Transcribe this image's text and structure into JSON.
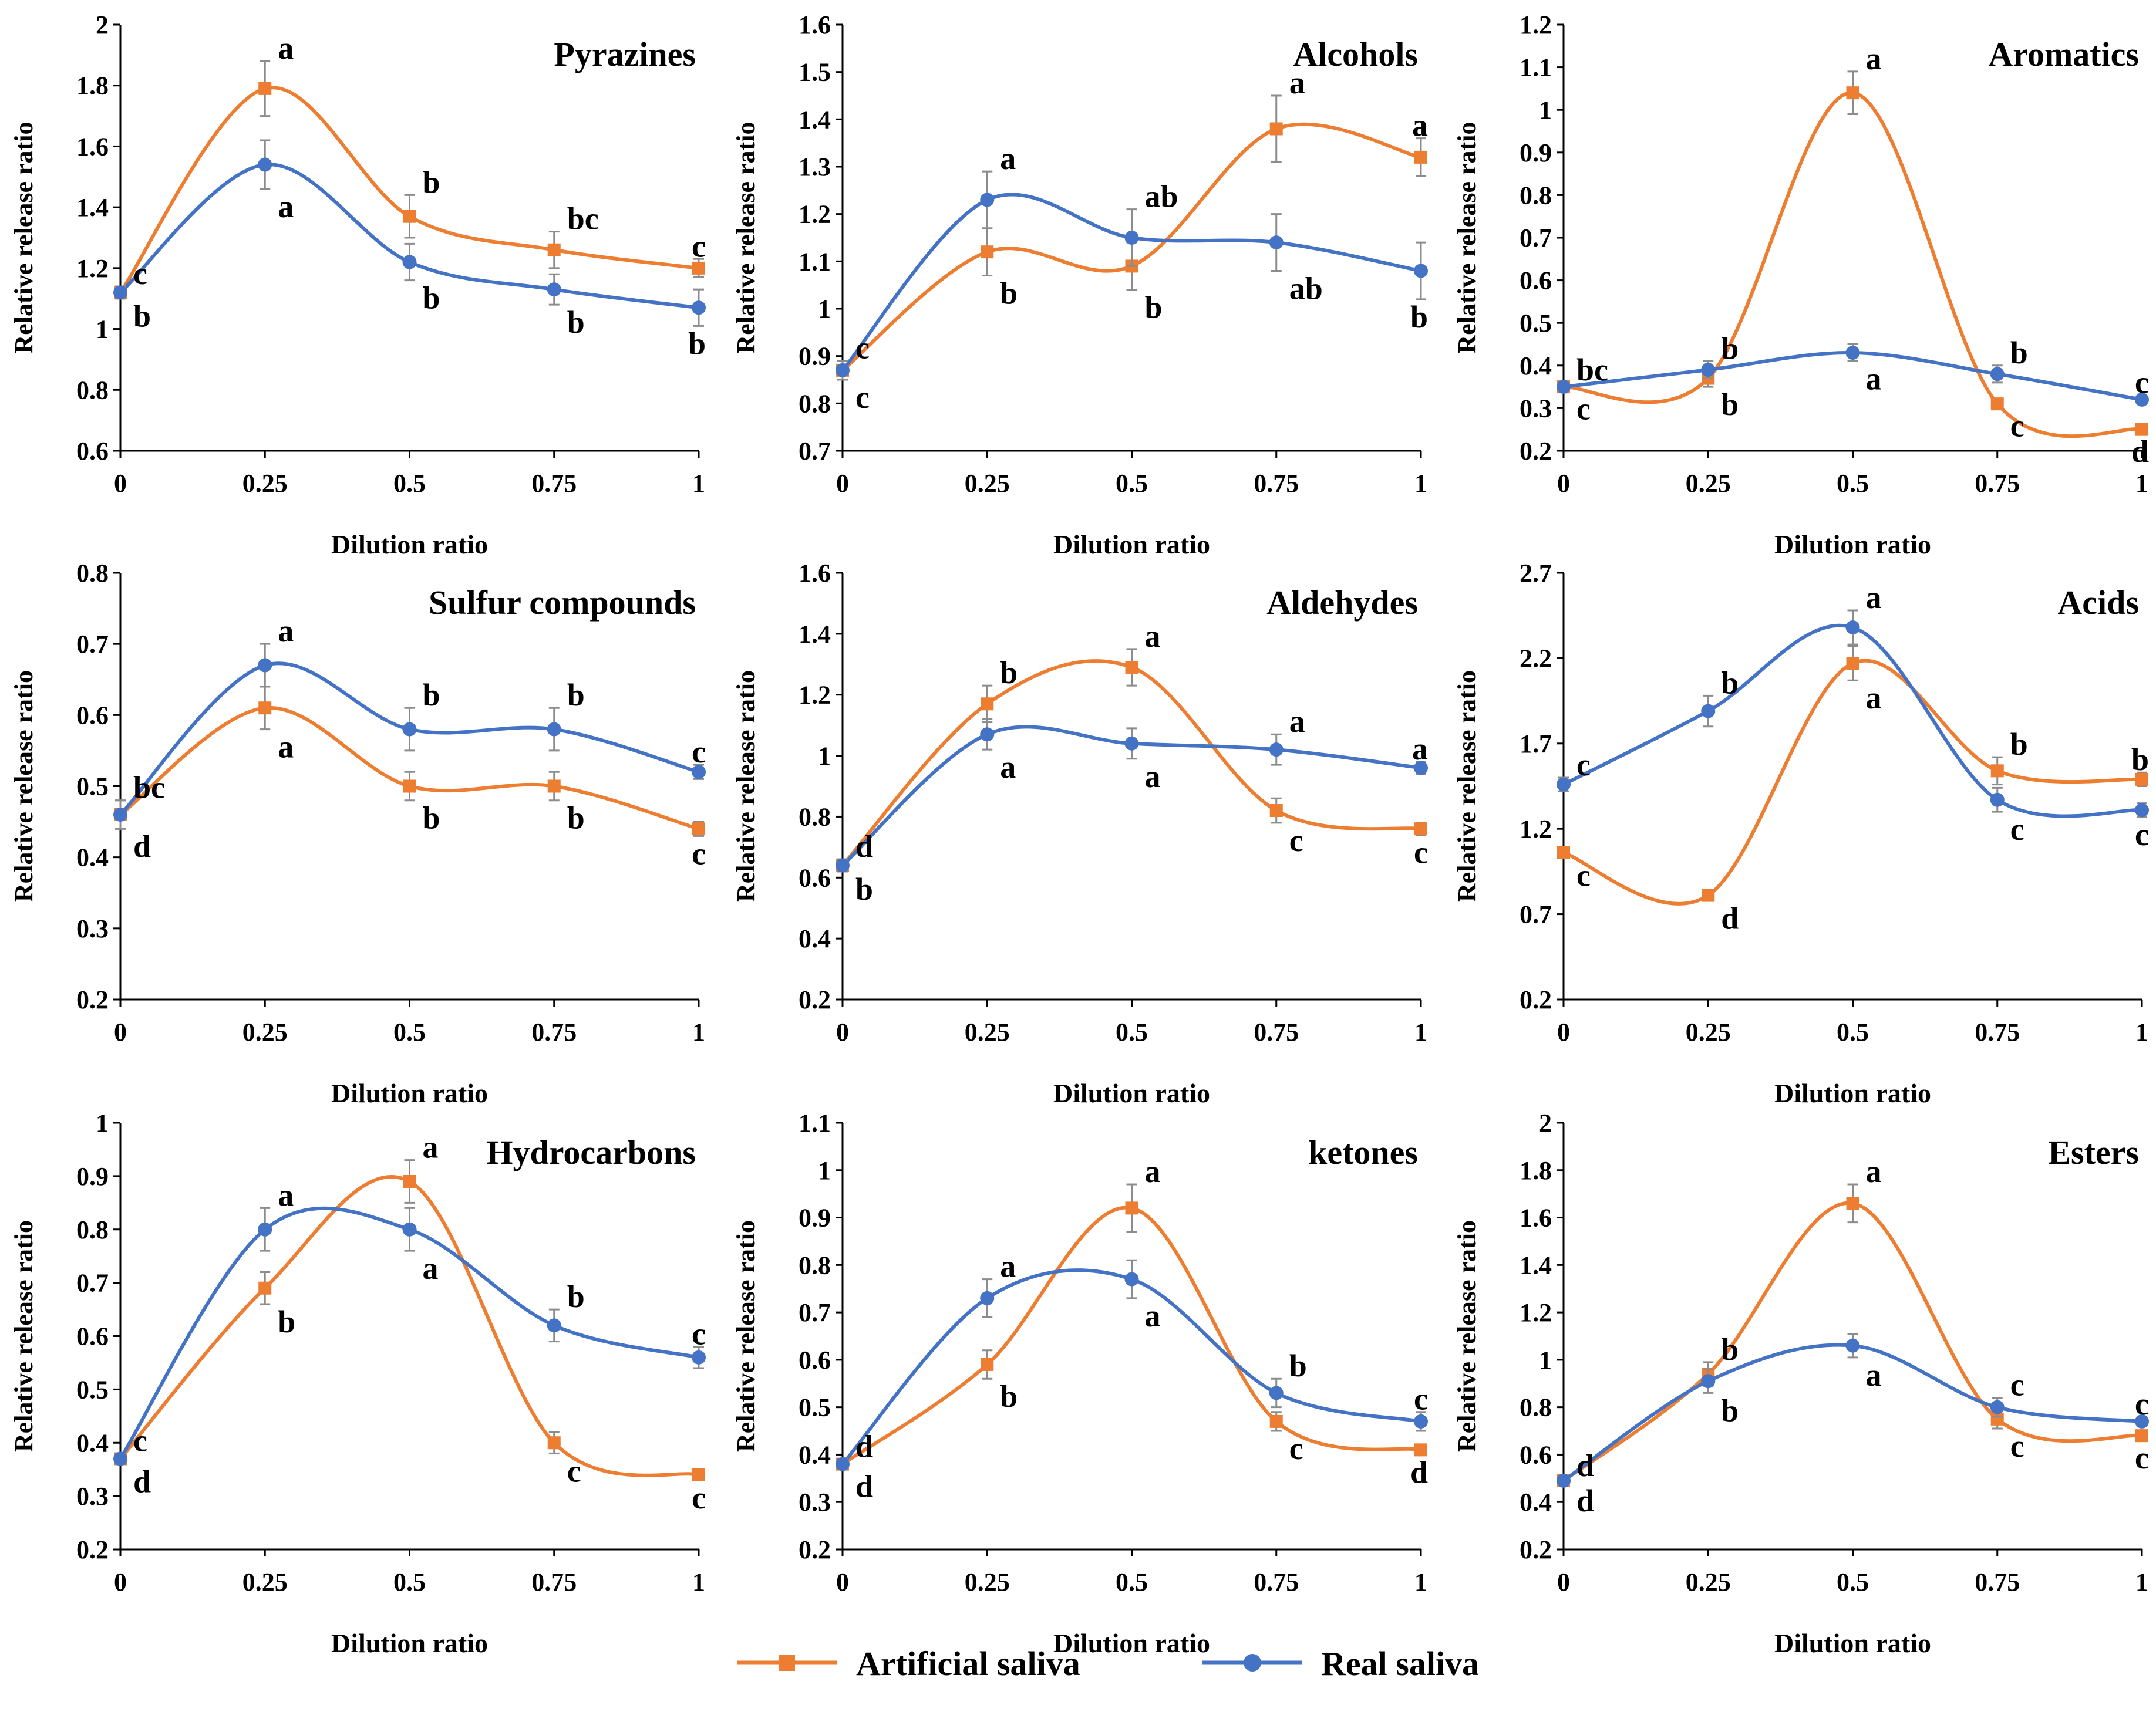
{
  "colors": {
    "artificial": "#ED7D31",
    "real": "#4472C4",
    "error_bar": "#8C8C8C",
    "axis": "#000000"
  },
  "legend": {
    "artificial_label": "Artificial saliva",
    "real_label": "Real saliva"
  },
  "chart_data": [
    {
      "type": "line",
      "title": "Pyrazines",
      "xlabel": "Dilution ratio",
      "ylabel": "Relative release ratio",
      "x": [
        0,
        0.25,
        0.5,
        0.75,
        1
      ],
      "x_ticks": [
        "0",
        "0.25",
        "0.5",
        "0.75",
        "1"
      ],
      "ylim": [
        0.6,
        2.0
      ],
      "y_ticks": [
        "0.6",
        "0.8",
        "1",
        "1.2",
        "1.4",
        "1.6",
        "1.8",
        "2"
      ],
      "series": [
        {
          "name": "Artificial saliva",
          "values": [
            1.12,
            1.79,
            1.37,
            1.26,
            1.2
          ],
          "errors": [
            0.02,
            0.09,
            0.07,
            0.06,
            0.03
          ],
          "letters": [
            "c",
            "a",
            "b",
            "bc",
            "c"
          ]
        },
        {
          "name": "Real saliva",
          "values": [
            1.12,
            1.54,
            1.22,
            1.13,
            1.07
          ],
          "errors": [
            0.02,
            0.08,
            0.06,
            0.05,
            0.06
          ],
          "letters": [
            "b",
            "a",
            "b",
            "b",
            "b"
          ]
        }
      ]
    },
    {
      "type": "line",
      "title": "Alcohols",
      "xlabel": "Dilution ratio",
      "ylabel": "Relative release ratio",
      "x": [
        0,
        0.25,
        0.5,
        0.75,
        1
      ],
      "x_ticks": [
        "0",
        "0.25",
        "0.5",
        "0.75",
        "1"
      ],
      "ylim": [
        0.7,
        1.6
      ],
      "y_ticks": [
        "0.7",
        "0.8",
        "0.9",
        "1",
        "1.1",
        "1.2",
        "1.3",
        "1.4",
        "1.5",
        "1.6"
      ],
      "series": [
        {
          "name": "Artificial saliva",
          "values": [
            0.87,
            1.12,
            1.09,
            1.38,
            1.32
          ],
          "errors": [
            0.02,
            0.05,
            0.05,
            0.07,
            0.04
          ],
          "letters": [
            "c",
            "b",
            "b",
            "a",
            "a"
          ]
        },
        {
          "name": "Real saliva",
          "values": [
            0.87,
            1.23,
            1.15,
            1.14,
            1.08
          ],
          "errors": [
            0.02,
            0.06,
            0.06,
            0.06,
            0.06
          ],
          "letters": [
            "c",
            "a",
            "ab",
            "ab",
            "b"
          ]
        }
      ]
    },
    {
      "type": "line",
      "title": "Aromatics",
      "xlabel": "Dilution ratio",
      "ylabel": "Relative release ratio",
      "x": [
        0,
        0.25,
        0.5,
        0.75,
        1
      ],
      "x_ticks": [
        "0",
        "0.25",
        "0.5",
        "0.75",
        "1"
      ],
      "ylim": [
        0.2,
        1.2
      ],
      "y_ticks": [
        "0.2",
        "0.3",
        "0.4",
        "0.5",
        "0.6",
        "0.7",
        "0.8",
        "0.9",
        "1",
        "1.1",
        "1.2"
      ],
      "series": [
        {
          "name": "Artificial saliva",
          "values": [
            0.35,
            0.37,
            1.04,
            0.31,
            0.25
          ],
          "errors": [
            0.01,
            0.02,
            0.05,
            0.01,
            0.01
          ],
          "letters": [
            "bc",
            "b",
            "a",
            "c",
            "d"
          ]
        },
        {
          "name": "Real saliva",
          "values": [
            0.35,
            0.39,
            0.43,
            0.38,
            0.32
          ],
          "errors": [
            0.01,
            0.02,
            0.02,
            0.02,
            0.01
          ],
          "letters": [
            "c",
            "b",
            "a",
            "b",
            "c"
          ]
        }
      ]
    },
    {
      "type": "line",
      "title": "Sulfur compounds",
      "xlabel": "Dilution ratio",
      "ylabel": "Relative release ratio",
      "x": [
        0,
        0.25,
        0.5,
        0.75,
        1
      ],
      "x_ticks": [
        "0",
        "0.25",
        "0.5",
        "0.75",
        "1"
      ],
      "ylim": [
        0.2,
        0.8
      ],
      "y_ticks": [
        "0.2",
        "0.3",
        "0.4",
        "0.5",
        "0.6",
        "0.7",
        "0.8"
      ],
      "series": [
        {
          "name": "Artificial saliva",
          "values": [
            0.46,
            0.61,
            0.5,
            0.5,
            0.44
          ],
          "errors": [
            0.02,
            0.03,
            0.02,
            0.02,
            0.01
          ],
          "letters": [
            "bc",
            "a",
            "b",
            "b",
            "c"
          ]
        },
        {
          "name": "Real saliva",
          "values": [
            0.46,
            0.67,
            0.58,
            0.58,
            0.52
          ],
          "errors": [
            0.02,
            0.03,
            0.03,
            0.03,
            0.01
          ],
          "letters": [
            "d",
            "a",
            "b",
            "b",
            "c"
          ]
        }
      ]
    },
    {
      "type": "line",
      "title": "Aldehydes",
      "xlabel": "Dilution ratio",
      "ylabel": "Relative release ratio",
      "x": [
        0,
        0.25,
        0.5,
        0.75,
        1
      ],
      "x_ticks": [
        "0",
        "0.25",
        "0.5",
        "0.75",
        "1"
      ],
      "ylim": [
        0.2,
        1.6
      ],
      "y_ticks": [
        "0.2",
        "0.4",
        "0.6",
        "0.8",
        "1",
        "1.2",
        "1.4",
        "1.6"
      ],
      "series": [
        {
          "name": "Artificial saliva",
          "values": [
            0.64,
            1.17,
            1.29,
            0.82,
            0.76
          ],
          "errors": [
            0.02,
            0.06,
            0.06,
            0.04,
            0.02
          ],
          "letters": [
            "d",
            "b",
            "a",
            "c",
            "c"
          ]
        },
        {
          "name": "Real saliva",
          "values": [
            0.64,
            1.07,
            1.04,
            1.02,
            0.96
          ],
          "errors": [
            0.02,
            0.05,
            0.05,
            0.05,
            0.02
          ],
          "letters": [
            "b",
            "a",
            "a",
            "a",
            "a"
          ]
        }
      ]
    },
    {
      "type": "line",
      "title": "Acids",
      "xlabel": "Dilution ratio",
      "ylabel": "Relative release ratio",
      "x": [
        0,
        0.25,
        0.5,
        0.75,
        1
      ],
      "x_ticks": [
        "0",
        "0.25",
        "0.5",
        "0.75",
        "1"
      ],
      "ylim": [
        0.2,
        2.7
      ],
      "y_ticks": [
        "0.2",
        "0.7",
        "1.2",
        "1.7",
        "2.2",
        "2.7"
      ],
      "series": [
        {
          "name": "Artificial saliva",
          "values": [
            1.06,
            0.81,
            2.17,
            1.54,
            1.49
          ],
          "errors": [
            0.03,
            0.03,
            0.1,
            0.08,
            0.04
          ],
          "letters": [
            "c",
            "d",
            "a",
            "b",
            "b"
          ]
        },
        {
          "name": "Real saliva",
          "values": [
            1.46,
            1.89,
            2.38,
            1.37,
            1.31
          ],
          "errors": [
            0.04,
            0.09,
            0.1,
            0.07,
            0.04
          ],
          "letters": [
            "c",
            "b",
            "a",
            "c",
            "c"
          ]
        }
      ]
    },
    {
      "type": "line",
      "title": "Hydrocarbons",
      "xlabel": "Dilution ratio",
      "ylabel": "Relative release ratio",
      "x": [
        0,
        0.25,
        0.5,
        0.75,
        1
      ],
      "x_ticks": [
        "0",
        "0.25",
        "0.5",
        "0.75",
        "1"
      ],
      "ylim": [
        0.2,
        1.0
      ],
      "y_ticks": [
        "0.2",
        "0.3",
        "0.4",
        "0.5",
        "0.6",
        "0.7",
        "0.8",
        "0.9",
        "1"
      ],
      "series": [
        {
          "name": "Artificial saliva",
          "values": [
            0.37,
            0.69,
            0.89,
            0.4,
            0.34
          ],
          "errors": [
            0.01,
            0.03,
            0.04,
            0.02,
            0.01
          ],
          "letters": [
            "c",
            "b",
            "a",
            "c",
            "c"
          ]
        },
        {
          "name": "Real saliva",
          "values": [
            0.37,
            0.8,
            0.8,
            0.62,
            0.56
          ],
          "errors": [
            0.01,
            0.04,
            0.04,
            0.03,
            0.02
          ],
          "letters": [
            "d",
            "a",
            "a",
            "b",
            "c"
          ]
        }
      ]
    },
    {
      "type": "line",
      "title": "ketones",
      "xlabel": "Dilution ratio",
      "ylabel": "Relative release ratio",
      "x": [
        0,
        0.25,
        0.5,
        0.75,
        1
      ],
      "x_ticks": [
        "0",
        "0.25",
        "0.5",
        "0.75",
        "1"
      ],
      "ylim": [
        0.2,
        1.1
      ],
      "y_ticks": [
        "0.2",
        "0.3",
        "0.4",
        "0.5",
        "0.6",
        "0.7",
        "0.8",
        "0.9",
        "1",
        "1.1"
      ],
      "series": [
        {
          "name": "Artificial saliva",
          "values": [
            0.38,
            0.59,
            0.92,
            0.47,
            0.41
          ],
          "errors": [
            0.01,
            0.03,
            0.05,
            0.02,
            0.01
          ],
          "letters": [
            "d",
            "b",
            "a",
            "c",
            "d"
          ]
        },
        {
          "name": "Real saliva",
          "values": [
            0.38,
            0.73,
            0.77,
            0.53,
            0.47
          ],
          "errors": [
            0.01,
            0.04,
            0.04,
            0.03,
            0.02
          ],
          "letters": [
            "d",
            "a",
            "a",
            "b",
            "c"
          ]
        }
      ]
    },
    {
      "type": "line",
      "title": "Esters",
      "xlabel": "Dilution ratio",
      "ylabel": "Relative release ratio",
      "x": [
        0,
        0.25,
        0.5,
        0.75,
        1
      ],
      "x_ticks": [
        "0",
        "0.25",
        "0.5",
        "0.75",
        "1"
      ],
      "ylim": [
        0.2,
        2.0
      ],
      "y_ticks": [
        "0.2",
        "0.4",
        "0.6",
        "0.8",
        "1",
        "1.2",
        "1.4",
        "1.6",
        "1.8",
        "2"
      ],
      "series": [
        {
          "name": "Artificial saliva",
          "values": [
            0.49,
            0.94,
            1.66,
            0.75,
            0.68
          ],
          "errors": [
            0.01,
            0.05,
            0.08,
            0.04,
            0.02
          ],
          "letters": [
            "d",
            "b",
            "a",
            "c",
            "c"
          ]
        },
        {
          "name": "Real saliva",
          "values": [
            0.49,
            0.91,
            1.06,
            0.8,
            0.74
          ],
          "errors": [
            0.01,
            0.05,
            0.05,
            0.04,
            0.02
          ],
          "letters": [
            "d",
            "b",
            "a",
            "c",
            "c"
          ]
        }
      ]
    }
  ]
}
